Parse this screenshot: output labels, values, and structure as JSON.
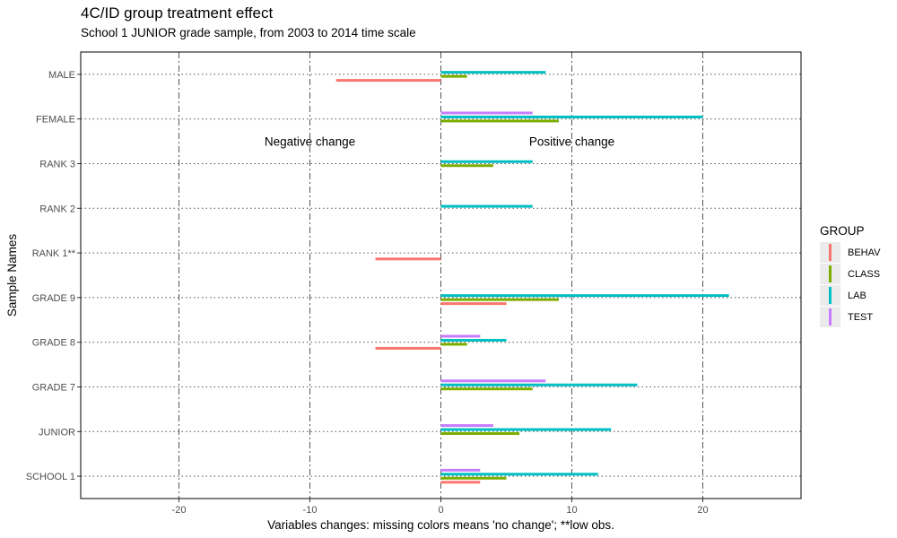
{
  "chart_data": {
    "type": "bar",
    "orientation": "horizontal",
    "title": "4C/ID group treatment effect",
    "subtitle": "School 1 JUNIOR grade sample, from 2003 to 2014 time scale",
    "xlabel": "Variables changes: missing colors means 'no change'; **low obs.",
    "ylabel": "Sample Names",
    "xlim": [
      -27.5,
      27.5
    ],
    "xticks": [
      -20,
      -10,
      0,
      10,
      20
    ],
    "xtick_labels": [
      "-20",
      "-10",
      "0",
      "10",
      "20"
    ],
    "categories": [
      "SCHOOL 1",
      "JUNIOR",
      "GRADE 7",
      "GRADE 8",
      "GRADE 9",
      "RANK 1**",
      "RANK 2",
      "RANK 3",
      "FEMALE",
      "MALE"
    ],
    "series": [
      {
        "name": "BEHAV",
        "color": "#F8766D",
        "values": [
          3,
          null,
          null,
          -5,
          5,
          -5,
          null,
          null,
          null,
          -8
        ]
      },
      {
        "name": "CLASS",
        "color": "#7CAE00",
        "values": [
          5,
          6,
          7,
          2,
          9,
          null,
          null,
          4,
          9,
          2
        ]
      },
      {
        "name": "LAB",
        "color": "#00BFC4",
        "values": [
          12,
          13,
          15,
          5,
          22,
          null,
          7,
          7,
          20,
          8
        ]
      },
      {
        "name": "TEST",
        "color": "#C77CFF",
        "values": [
          3,
          4,
          8,
          3,
          null,
          null,
          null,
          null,
          7,
          null
        ]
      }
    ],
    "annotations": [
      {
        "text": "Negative change",
        "x": -10,
        "y": "RANK 3"
      },
      {
        "text": "Positive change",
        "x": 10,
        "y": "RANK 3"
      }
    ],
    "legend": {
      "title": "GROUP",
      "position": "right"
    },
    "grid": true
  }
}
